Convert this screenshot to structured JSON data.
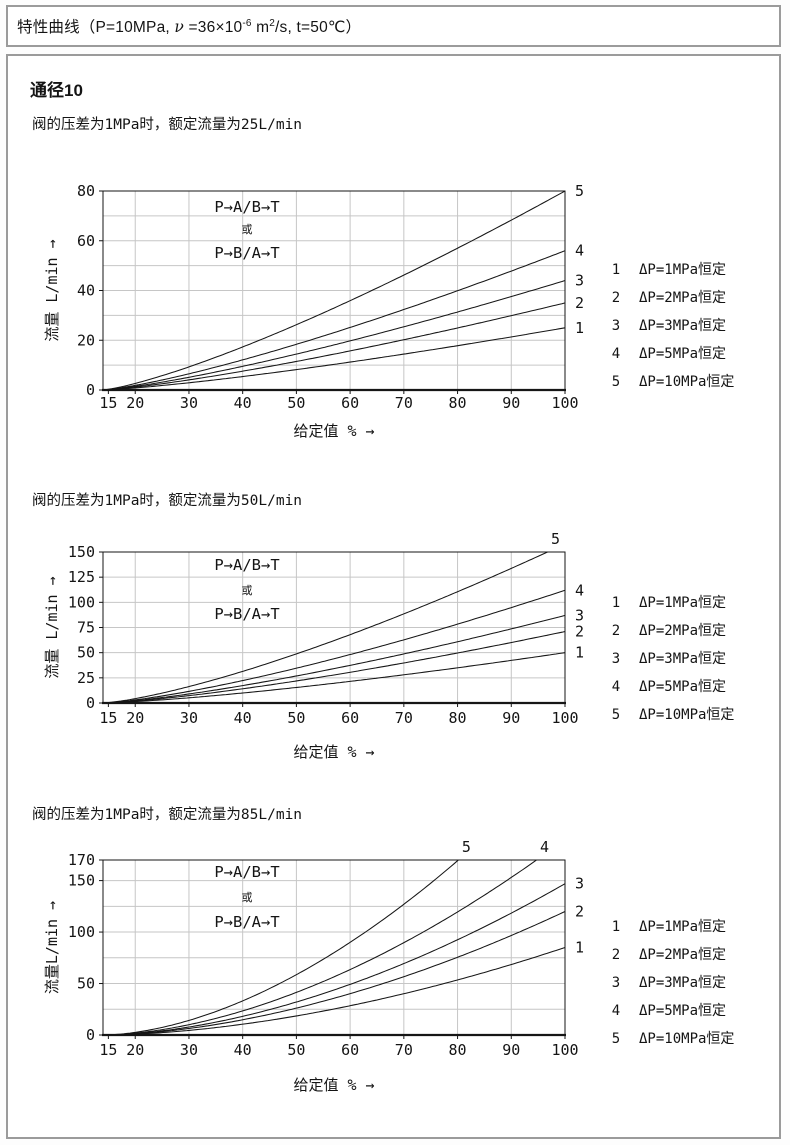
{
  "header": {
    "title": {
      "part1": "特性曲线（P=10MPa, ",
      "nu": "ν",
      "part2": " =36×10",
      "sup1": "-6",
      "part3": " m",
      "sup2": "2",
      "part4": "/s, t=50℃）"
    }
  },
  "section": {
    "title": "通径10"
  },
  "chart_data": [
    {
      "type": "line",
      "subtitle": "阀的压差为1MPa时，额定流量为25L/min",
      "annotation": [
        "P→A/B→T",
        "或",
        "P→B/A→T"
      ],
      "xlabel": "给定值 % →",
      "ylabel": "流量 L/min →",
      "x_range": [
        15,
        100
      ],
      "x_ticks": [
        15,
        20,
        30,
        40,
        50,
        60,
        70,
        80,
        90,
        100
      ],
      "y_ticks": [
        0,
        20,
        40,
        60,
        80
      ],
      "y_max": 80,
      "y_grid_step": 10,
      "x_grid_step": 10,
      "grid": true,
      "legend_position": "right",
      "curve_shape_exponent": 1.28,
      "series": [
        {
          "id": "1",
          "legend": "ΔP=1MPa恒定",
          "value_at_100pct": 25
        },
        {
          "id": "2",
          "legend": "ΔP=2MPa恒定",
          "value_at_100pct": 35
        },
        {
          "id": "3",
          "legend": "ΔP=3MPa恒定",
          "value_at_100pct": 44
        },
        {
          "id": "4",
          "legend": "ΔP=5MPa恒定",
          "value_at_100pct": 56
        },
        {
          "id": "5",
          "legend": "ΔP=10MPa恒定",
          "value_at_100pct": 80
        }
      ]
    },
    {
      "type": "line",
      "subtitle": "阀的压差为1MPa时，额定流量为50L/min",
      "annotation": [
        "P→A/B→T",
        "或",
        "P→B/A→T"
      ],
      "xlabel": "给定值 % →",
      "ylabel": "流量 L/min →",
      "x_range": [
        15,
        100
      ],
      "x_ticks": [
        15,
        20,
        30,
        40,
        50,
        60,
        70,
        80,
        90,
        100
      ],
      "y_ticks": [
        0,
        25,
        50,
        75,
        100,
        125,
        150
      ],
      "y_max": 150,
      "y_grid_step": 25,
      "x_grid_step": 10,
      "grid": true,
      "legend_position": "right",
      "curve_shape_exponent": 1.35,
      "series": [
        {
          "id": "1",
          "legend": "ΔP=1MPa恒定",
          "value_at_100pct": 50
        },
        {
          "id": "2",
          "legend": "ΔP=2MPa恒定",
          "value_at_100pct": 71
        },
        {
          "id": "3",
          "legend": "ΔP=3MPa恒定",
          "value_at_100pct": 87
        },
        {
          "id": "4",
          "legend": "ΔP=5MPa恒定",
          "value_at_100pct": 112
        },
        {
          "id": "5",
          "legend": "ΔP=10MPa恒定",
          "value_at_100pct": 158
        }
      ]
    },
    {
      "type": "line",
      "subtitle": "阀的压差为1MPa时，额定流量为85L/min",
      "annotation": [
        "P→A/B→T",
        "或",
        "P→B/A→T"
      ],
      "xlabel": "给定值 % →",
      "ylabel": "流量L/min →",
      "x_range": [
        15,
        100
      ],
      "x_ticks": [
        15,
        20,
        30,
        40,
        50,
        60,
        70,
        80,
        90,
        100
      ],
      "y_ticks": [
        0,
        50,
        100,
        150,
        170
      ],
      "y_max": 170,
      "y_grid_step": 25,
      "x_grid_step": 10,
      "grid": true,
      "legend_position": "right",
      "curve_shape_exponent": 1.75,
      "series": [
        {
          "id": "1",
          "legend": "ΔP=1MPa恒定",
          "value_at_100pct": 85
        },
        {
          "id": "2",
          "legend": "ΔP=2MPa恒定",
          "value_at_100pct": 120
        },
        {
          "id": "3",
          "legend": "ΔP=3MPa恒定",
          "value_at_100pct": 147
        },
        {
          "id": "4",
          "legend": "ΔP=5MPa恒定",
          "value_at_100pct": 190
        },
        {
          "id": "5",
          "legend": "ΔP=10MPa恒定",
          "value_at_100pct": 269
        }
      ]
    }
  ]
}
